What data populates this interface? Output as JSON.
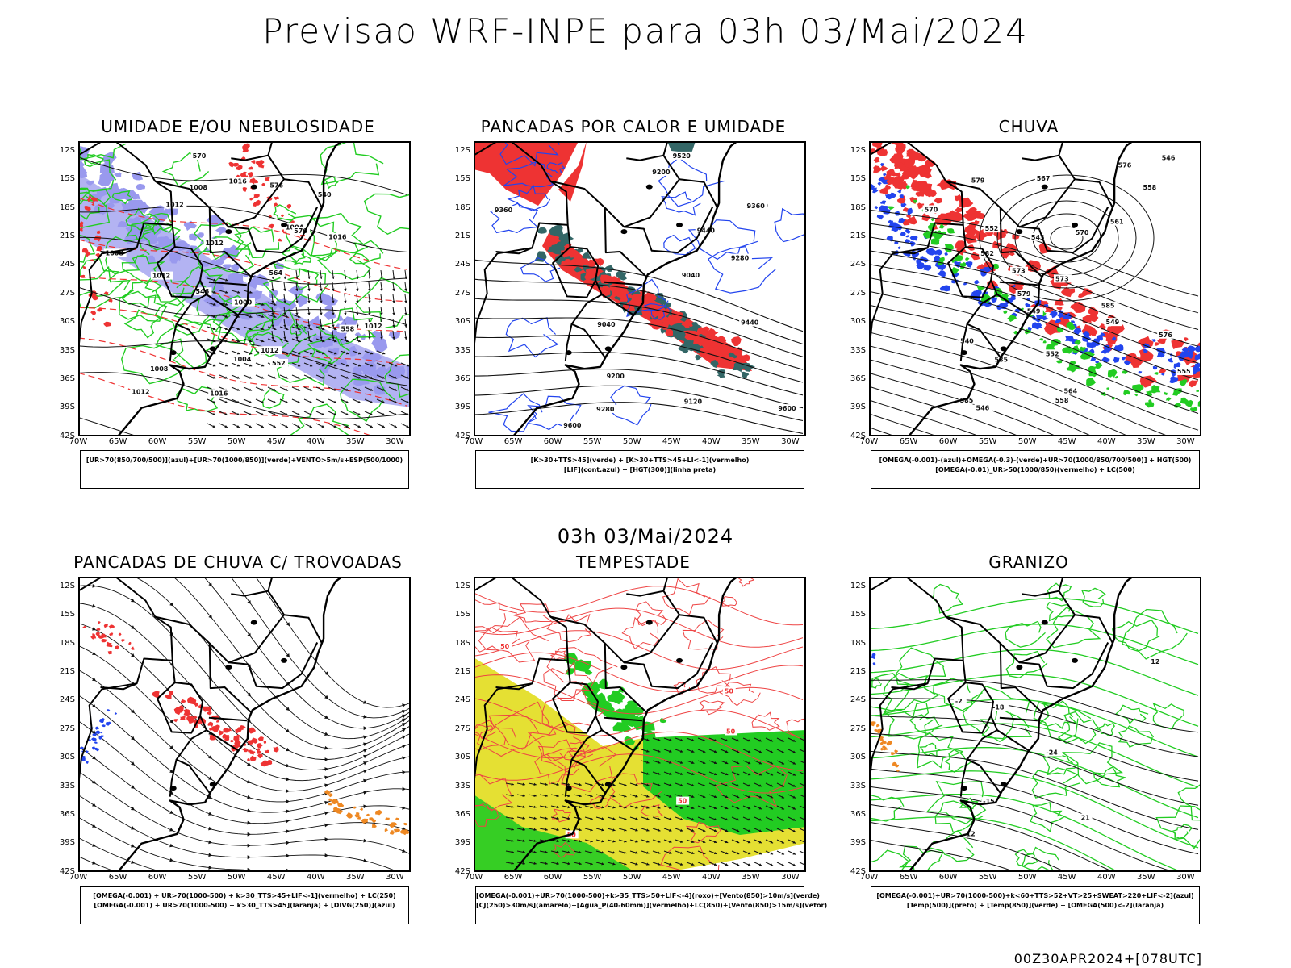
{
  "header": {
    "title": "Previsao WRF-INPE  para 03h 03/Mai/2024",
    "subtitle": "03h 03/Mai/2024",
    "footer": "00Z30APR2024+[078UTC]"
  },
  "axes": {
    "lat_ticks": [
      "12S",
      "15S",
      "18S",
      "21S",
      "24S",
      "27S",
      "30S",
      "33S",
      "36S",
      "39S",
      "42S"
    ],
    "lon_ticks": [
      "70W",
      "65W",
      "60W",
      "55W",
      "50W",
      "45W",
      "40W",
      "35W",
      "30W"
    ]
  },
  "colors": {
    "humidity_blue": "#9999ee",
    "green": "#22cc22",
    "red": "#ee3333",
    "dark_teal": "#336666",
    "blue": "#2244ee",
    "yellow": "#e5e033",
    "orange": "#ee8822",
    "black": "#000000"
  },
  "panels": [
    {
      "id": "umidade",
      "title": "UMIDADE E/OU NEBULOSIDADE",
      "legend": [
        "[UR>70(850/700/500)](azul)+[UR>70(1000/850)](verde)+VENTO>5m/s+ESP(500/1000)"
      ],
      "contour_labels": [
        "1012",
        "1012",
        "1012",
        "1016",
        "1008",
        "1008",
        "1012",
        "1016",
        "1012",
        "1004",
        "1008",
        "1004",
        "1000",
        "1012",
        "1016",
        "576",
        "576",
        "570",
        "564",
        "558",
        "552",
        "546",
        "540"
      ]
    },
    {
      "id": "pancadas-calor",
      "title": "PANCADAS POR CALOR E UMIDADE",
      "legend": [
        "[K>30+TTS>45](verde) + [K>30+TTS>45+LI<-1](vermelho)",
        "[LIF](cont.azul) + [HGT(300)](linha preta)"
      ],
      "contour_labels": [
        "9600",
        "9520",
        "9440",
        "9360",
        "9280",
        "9200",
        "9120",
        "9040",
        "9600",
        "9520",
        "9440",
        "9360",
        "9280",
        "9200",
        "9040"
      ]
    },
    {
      "id": "chuva",
      "title": "CHUVA",
      "legend": [
        "[OMEGA(-0.001)-(azul)+OMEGA(-0.3)-(verde)+UR>70(1000/850/700/500)] + HGT(500)",
        "[OMEGA(-0.01)_UR>50(1000/850)(vermelho) + LC(500)"
      ],
      "contour_labels": [
        "585",
        "585",
        "585",
        "582",
        "579",
        "576",
        "573",
        "570",
        "567",
        "564",
        "561",
        "558",
        "555",
        "552",
        "549",
        "546",
        "543",
        "540",
        "579",
        "576",
        "573",
        "570",
        "558",
        "552",
        "549",
        "546"
      ]
    },
    {
      "id": "pancadas-trovoadas",
      "title": "PANCADAS DE CHUVA C/ TROVOADAS",
      "legend": [
        "[OMEGA(-0.001) + UR>70(1000-500) + k>30_TTS>45+LIF<-1](vermelho) + LC(250)",
        "[OMEGA(-0.001) + UR>70(1000-500) + k>30_TTS>45](laranja) + [DIVG(250)](azul)"
      ],
      "contour_labels": []
    },
    {
      "id": "tempestade",
      "title": "TEMPESTADE",
      "legend": [
        "[OMEGA(-0.001)+UR>70(1000-500)+k>35_TTS>50+LIF<-4](roxo)+[Vento(850)>10m/s](verde)",
        "[CJ(250)>30m/s](amarelo)+[Agua_P(40-60mm)](vermelho)+LC(850)+[Vento(850)>15m/s](vetor)"
      ],
      "contour_labels": [
        "50",
        "50",
        "50",
        "50",
        "50"
      ]
    },
    {
      "id": "granizo",
      "title": "GRANIZO",
      "legend": [
        "[OMEGA(-0.001)+UR>70(1000-500)+k<60+TTS>52+VT>25+SWEAT>220+LIF<-2](azul)",
        "[Temp(500)](preto) + [Temp(850)](verde) + [OMEGA(500)<-2](laranja)"
      ],
      "contour_labels": [
        "-12",
        "-15",
        "-18",
        "-24",
        "-2",
        "12",
        "21"
      ]
    }
  ]
}
